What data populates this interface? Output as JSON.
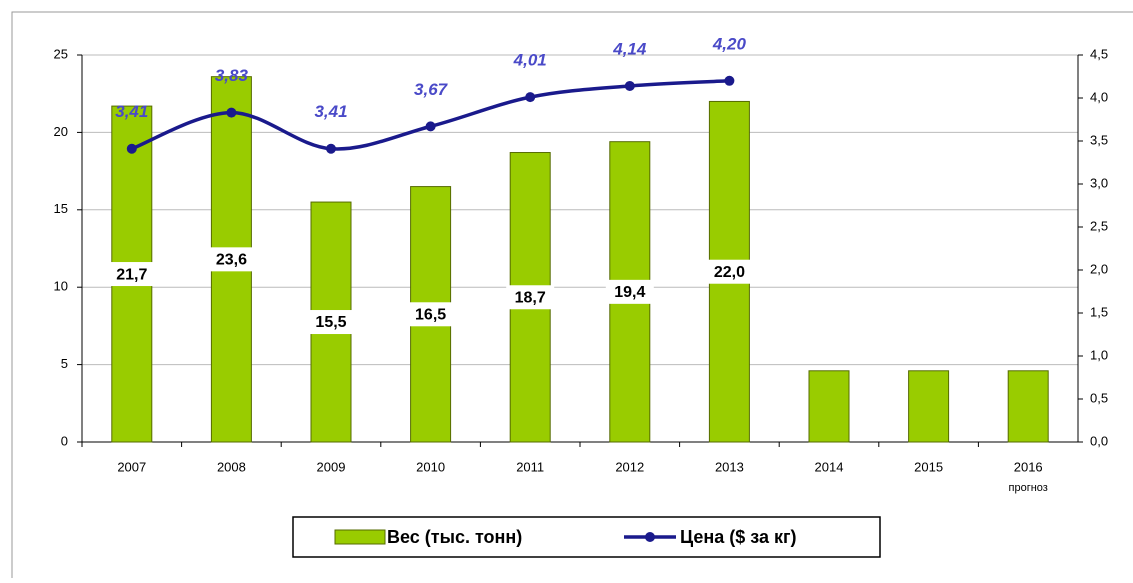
{
  "chart_data": {
    "type": "bar_line",
    "categories": [
      "2007",
      "2008",
      "2009",
      "2010",
      "2011",
      "2012",
      "2013",
      "2014",
      "2015",
      "2016"
    ],
    "category_note": "прогноз",
    "series": [
      {
        "name": "Вес (тыс. тонн)",
        "type": "bar",
        "color": "#99cc00",
        "values": [
          21.7,
          23.6,
          15.5,
          16.5,
          18.7,
          19.4,
          22.0,
          4.6,
          4.6,
          4.6
        ],
        "value_labels": [
          "21,7",
          "23,6",
          "15,5",
          "16,5",
          "18,7",
          "19,4",
          "22,0",
          null,
          null,
          null
        ]
      },
      {
        "name": "Цена ($ за кг)",
        "type": "line",
        "color": "#1a1a8c",
        "axis": "y2",
        "values": [
          3.41,
          3.83,
          3.41,
          3.67,
          4.01,
          4.14,
          4.2,
          null,
          null,
          null
        ],
        "value_labels": [
          "3,41",
          "3,83",
          "3,41",
          "3,67",
          "4,01",
          "4,14",
          "4,20",
          null,
          null,
          null
        ]
      }
    ],
    "ylim": [
      0,
      25
    ],
    "yticks": [
      0,
      5,
      10,
      15,
      20,
      25
    ],
    "y2lim": [
      0,
      4.5
    ],
    "y2ticks": [
      {
        "value": 0,
        "label": "0,0"
      },
      {
        "value": 0.5,
        "label": "0,5"
      },
      {
        "value": 1,
        "label": "1,0"
      },
      {
        "value": 1.5,
        "label": "1,5"
      },
      {
        "value": 2,
        "label": "2,0"
      },
      {
        "value": 2.5,
        "label": "2,5"
      },
      {
        "value": 3,
        "label": "3,0"
      },
      {
        "value": 3.5,
        "label": "3,5"
      },
      {
        "value": 4,
        "label": "4,0"
      },
      {
        "value": 4.5,
        "label": "4,5"
      }
    ],
    "grid": true
  }
}
